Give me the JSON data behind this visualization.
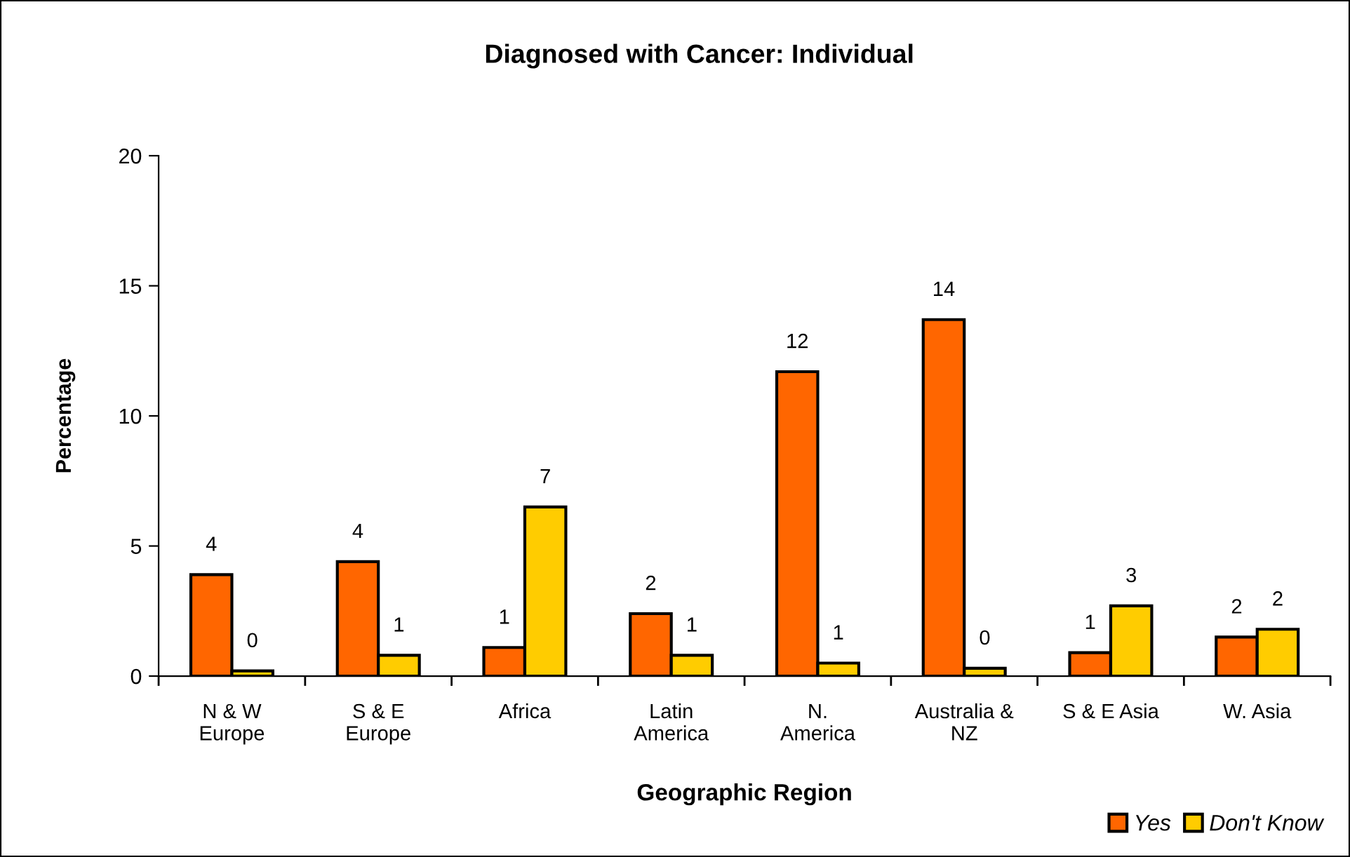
{
  "chart_data": {
    "type": "bar",
    "title": "Diagnosed with Cancer: Individual",
    "xlabel": "Geographic Region",
    "ylabel": "Percentage",
    "categories": [
      "N & W\nEurope",
      "S & E\nEurope",
      "Africa",
      "Latin\nAmerica",
      "N.\nAmerica",
      "Australia &\nNZ",
      "S & E Asia",
      "W. Asia"
    ],
    "series": [
      {
        "name": "Yes",
        "color": "#ff6600",
        "values": [
          3.9,
          4.4,
          1.1,
          2.4,
          11.7,
          13.7,
          0.9,
          1.5
        ],
        "value_labels": [
          "4",
          "4",
          "1",
          "2",
          "12",
          "14",
          "1",
          "2"
        ]
      },
      {
        "name": "Don't Know",
        "color": "#ffcc00",
        "values": [
          0.2,
          0.8,
          6.5,
          0.8,
          0.5,
          0.3,
          2.7,
          1.8
        ],
        "value_labels": [
          "0",
          "1",
          "7",
          "1",
          "1",
          "0",
          "3",
          "2"
        ]
      }
    ],
    "ylim": [
      0,
      20
    ],
    "yticks": [
      0,
      5,
      10,
      15,
      20
    ],
    "grid": false,
    "legend": "bottom right"
  }
}
